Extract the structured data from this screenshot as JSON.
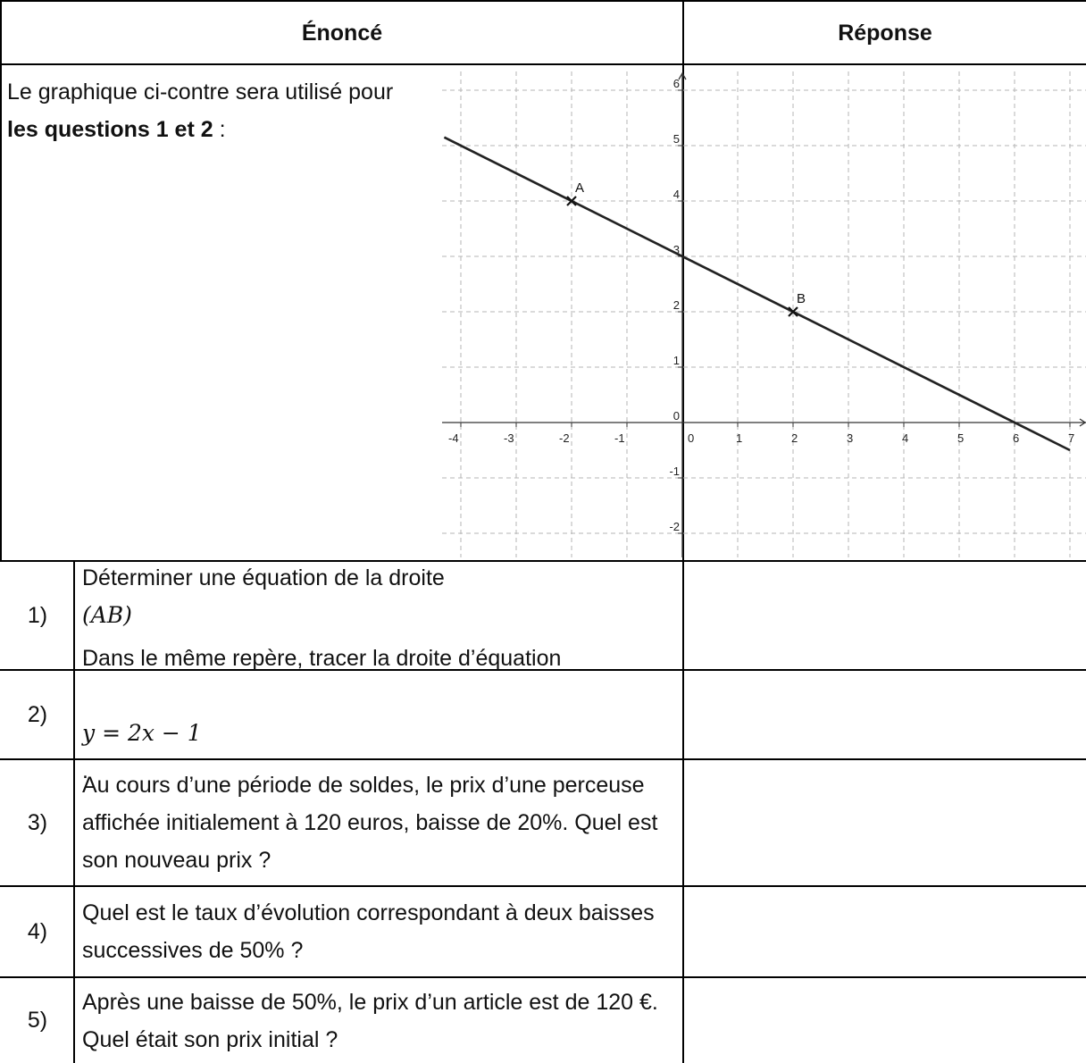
{
  "header": {
    "statement": "Énoncé",
    "answer": "Réponse"
  },
  "intro": {
    "before": "Le graphique ci-contre sera utilisé pour ",
    "bold": "les questions 1 et 2",
    "after": " :"
  },
  "questions": [
    {
      "number": "1)",
      "parts": [
        "Déterminer une équation de la droite ",
        "(AB)",
        "."
      ]
    },
    {
      "number": "2)",
      "line1": "Dans le même repère, tracer la droite d’équation",
      "math": "y = 2x − 1",
      "after": "."
    },
    {
      "number": "3)",
      "text": "Au cours d’une période de soldes, le prix d’une perceuse affichée initialement à 120 euros, baisse de 20%. Quel est son nouveau prix ?"
    },
    {
      "number": "4)",
      "text": "Quel est le taux d’évolution correspondant à deux baisses successives de 50% ?"
    },
    {
      "number": "5)",
      "text": "Après une baisse de 50%, le prix d’un article est de 120 €. Quel était son prix initial ?"
    }
  ],
  "chart_data": {
    "type": "line",
    "xlim": [
      -4.3,
      7
    ],
    "ylim": [
      -2.3,
      6
    ],
    "x_ticks": [
      "-4",
      "-3",
      "-2",
      "-1",
      "0",
      "1",
      "2",
      "3",
      "4",
      "5",
      "6",
      "7"
    ],
    "y_ticks": [
      "-2",
      "-1",
      "0",
      "1",
      "2",
      "3",
      "4",
      "5",
      "6"
    ],
    "grid": true,
    "series": [
      {
        "x": [
          -4.3,
          7
        ],
        "y": [
          5.15,
          -0.5
        ]
      }
    ],
    "points": [
      {
        "label": "A",
        "x": -2,
        "y": 4
      },
      {
        "label": "B",
        "x": 2,
        "y": 2
      }
    ],
    "line_color": "#222222",
    "grid_color": "#b5b5b5"
  }
}
